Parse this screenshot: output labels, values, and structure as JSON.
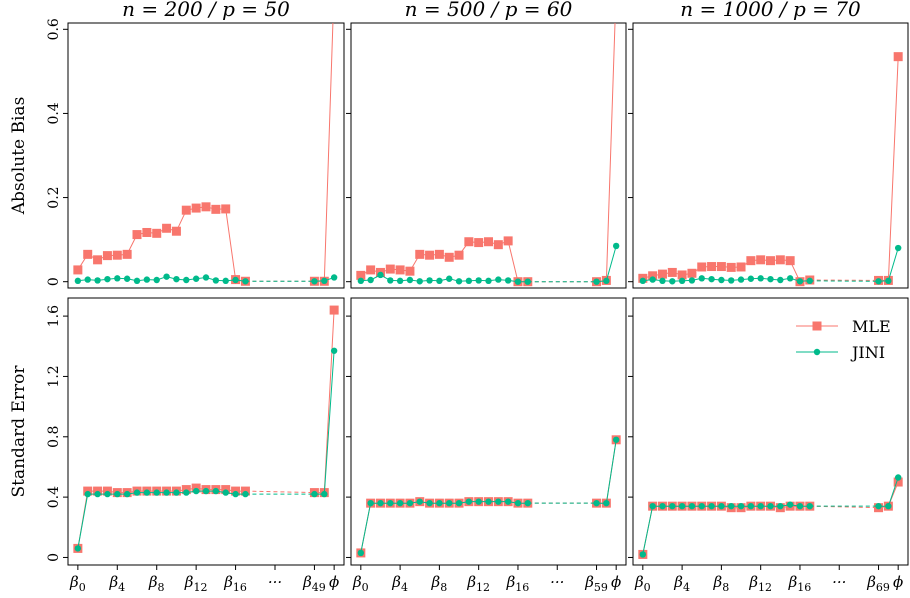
{
  "chart_data": {
    "type": "line",
    "legend_placement": "top-right of bottom-right panel",
    "colors": {
      "mle": "#f8766d",
      "jini": "#00ba8b"
    },
    "legend": [
      "MLE",
      "JINI"
    ],
    "row_labels": [
      "Absolute Bias",
      "Standard Error"
    ],
    "row_ticks": [
      [
        "0",
        "0.2",
        "0.4",
        "0.6"
      ],
      [
        "0",
        "0.4",
        "0.8",
        "1.2",
        "1.6"
      ]
    ],
    "row_tick_values": [
      [
        0,
        0.2,
        0.4,
        0.6
      ],
      [
        0,
        0.4,
        0.8,
        1.2,
        1.6
      ]
    ],
    "row_ylim": [
      [
        -0.015,
        0.615
      ],
      [
        -0.05,
        1.72
      ]
    ],
    "column_titles": [
      "n = 200 / p = 50",
      "n = 500 / p = 60",
      "n = 1000 / p = 70"
    ],
    "xtick_labels": [
      [
        "β0",
        "β4",
        "β8",
        "β12",
        "β16",
        "···",
        "β49",
        "ϕ"
      ],
      [
        "β0",
        "β4",
        "β8",
        "β12",
        "β16",
        "···",
        "β59",
        "ϕ"
      ],
      [
        "β0",
        "β4",
        "β8",
        "β12",
        "β16",
        "···",
        "β69",
        "ϕ"
      ]
    ],
    "x_positions": [
      0,
      1,
      2,
      3,
      4,
      5,
      6,
      7,
      8,
      9,
      10,
      11,
      12,
      13,
      14,
      15,
      16,
      17,
      24,
      25,
      26
    ],
    "xtick_positions": [
      0,
      4,
      8,
      12,
      16,
      20,
      24,
      26
    ],
    "panels": [
      {
        "row": 0,
        "col": 0,
        "series": [
          {
            "name": "MLE",
            "values": [
              0.028,
              0.065,
              0.052,
              0.062,
              0.063,
              0.065,
              0.112,
              0.117,
              0.115,
              0.127,
              0.12,
              0.17,
              0.175,
              0.178,
              0.172,
              0.173,
              0.005,
              0.001,
              0.001,
              0.001,
              0.7
            ]
          },
          {
            "name": "JINI",
            "values": [
              0.002,
              0.005,
              0.003,
              0.006,
              0.008,
              0.007,
              0.002,
              0.005,
              0.004,
              0.012,
              0.006,
              0.004,
              0.007,
              0.01,
              0.003,
              0.002,
              0.004,
              0.001,
              0.001,
              0.002,
              0.01
            ]
          }
        ]
      },
      {
        "row": 0,
        "col": 1,
        "series": [
          {
            "name": "MLE",
            "values": [
              0.015,
              0.028,
              0.022,
              0.03,
              0.028,
              0.025,
              0.065,
              0.063,
              0.065,
              0.058,
              0.063,
              0.095,
              0.093,
              0.095,
              0.088,
              0.097,
              0.0,
              0.0,
              0.0,
              0.003,
              0.7
            ]
          },
          {
            "name": "JINI",
            "values": [
              0.002,
              0.004,
              0.016,
              0.003,
              0.002,
              0.004,
              0.001,
              0.003,
              0.002,
              0.007,
              0.001,
              0.002,
              0.003,
              0.002,
              0.005,
              0.003,
              0.0,
              0.0,
              0.0,
              0.002,
              0.085
            ]
          }
        ]
      },
      {
        "row": 0,
        "col": 2,
        "series": [
          {
            "name": "MLE",
            "values": [
              0.008,
              0.014,
              0.018,
              0.022,
              0.016,
              0.02,
              0.035,
              0.036,
              0.036,
              0.034,
              0.035,
              0.05,
              0.052,
              0.05,
              0.052,
              0.05,
              0.0,
              0.004,
              0.003,
              0.003,
              0.535
            ]
          },
          {
            "name": "JINI",
            "values": [
              0.002,
              0.005,
              0.002,
              0.001,
              0.002,
              0.003,
              0.008,
              0.006,
              0.004,
              0.003,
              0.005,
              0.007,
              0.008,
              0.006,
              0.004,
              0.008,
              0.001,
              0.002,
              0.001,
              0.002,
              0.08
            ]
          }
        ]
      },
      {
        "row": 1,
        "col": 0,
        "series": [
          {
            "name": "MLE",
            "values": [
              0.06,
              0.44,
              0.44,
              0.44,
              0.43,
              0.43,
              0.44,
              0.44,
              0.44,
              0.44,
              0.44,
              0.45,
              0.46,
              0.45,
              0.45,
              0.45,
              0.44,
              0.44,
              0.43,
              0.43,
              1.64
            ]
          },
          {
            "name": "JINI",
            "values": [
              0.06,
              0.42,
              0.42,
              0.42,
              0.42,
              0.42,
              0.43,
              0.43,
              0.43,
              0.43,
              0.43,
              0.43,
              0.44,
              0.44,
              0.44,
              0.43,
              0.42,
              0.42,
              0.42,
              0.42,
              1.37
            ]
          }
        ]
      },
      {
        "row": 1,
        "col": 1,
        "series": [
          {
            "name": "MLE",
            "values": [
              0.03,
              0.36,
              0.36,
              0.36,
              0.36,
              0.36,
              0.37,
              0.36,
              0.36,
              0.36,
              0.36,
              0.37,
              0.37,
              0.37,
              0.37,
              0.37,
              0.36,
              0.36,
              0.36,
              0.36,
              0.78
            ]
          },
          {
            "name": "JINI",
            "values": [
              0.03,
              0.36,
              0.36,
              0.36,
              0.36,
              0.36,
              0.37,
              0.36,
              0.36,
              0.36,
              0.36,
              0.37,
              0.37,
              0.37,
              0.37,
              0.37,
              0.36,
              0.36,
              0.36,
              0.36,
              0.78
            ]
          }
        ]
      },
      {
        "row": 1,
        "col": 2,
        "series": [
          {
            "name": "MLE",
            "values": [
              0.02,
              0.34,
              0.34,
              0.34,
              0.34,
              0.34,
              0.34,
              0.34,
              0.34,
              0.33,
              0.33,
              0.34,
              0.34,
              0.34,
              0.33,
              0.34,
              0.34,
              0.34,
              0.33,
              0.34,
              0.5
            ]
          },
          {
            "name": "JINI",
            "values": [
              0.02,
              0.34,
              0.34,
              0.34,
              0.34,
              0.34,
              0.34,
              0.34,
              0.34,
              0.34,
              0.34,
              0.34,
              0.34,
              0.34,
              0.34,
              0.35,
              0.34,
              0.34,
              0.34,
              0.34,
              0.53
            ]
          }
        ]
      }
    ]
  }
}
